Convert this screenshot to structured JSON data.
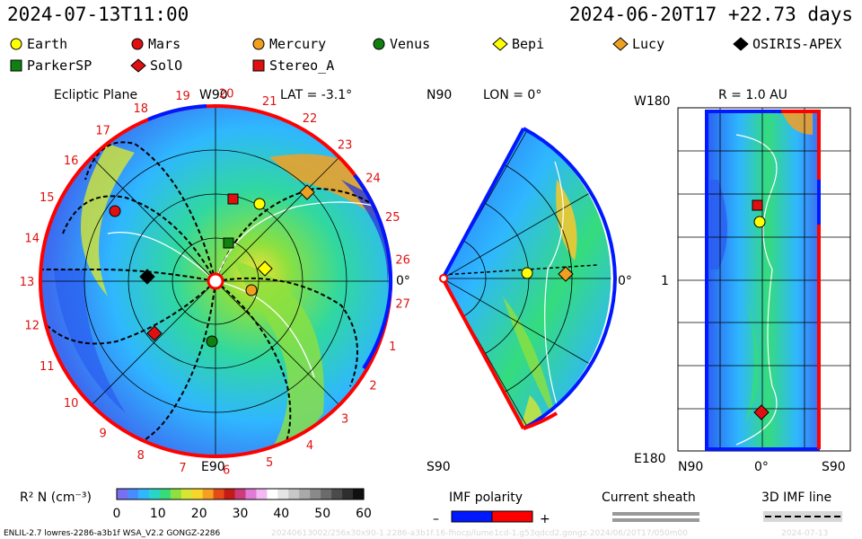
{
  "header": {
    "left": "2024-07-13T11:00",
    "right": "2024-06-20T17 +22.73 days"
  },
  "legend": [
    {
      "label": "Earth",
      "shape": "circle",
      "color": "#ffff00"
    },
    {
      "label": "Mars",
      "shape": "circle",
      "color": "#e01010"
    },
    {
      "label": "Mercury",
      "shape": "circle",
      "color": "#f0a020"
    },
    {
      "label": "Venus",
      "shape": "circle",
      "color": "#108010"
    },
    {
      "label": "Bepi",
      "shape": "diamond",
      "color": "#ffff00"
    },
    {
      "label": "Lucy",
      "shape": "diamond",
      "color": "#f0a020"
    },
    {
      "label": "OSIRIS-APEX",
      "shape": "diamond",
      "color": "#000000"
    },
    {
      "label": "ParkerSP",
      "shape": "square",
      "color": "#108010"
    },
    {
      "label": "SolO",
      "shape": "diamond",
      "color": "#e01010"
    },
    {
      "label": "Stereo_A",
      "shape": "square",
      "color": "#e01010"
    }
  ],
  "panel1": {
    "title": "Ecliptic Plane",
    "top_label": "W90",
    "bottom_label": "E90",
    "right_label": "0°",
    "lat": "LAT = -3.1°",
    "carrington": [
      "19",
      "20",
      "21",
      "22",
      "23",
      "24",
      "25",
      "26",
      "27",
      "1",
      "2",
      "3",
      "4",
      "5",
      "6",
      "7",
      "8",
      "9",
      "10",
      "11",
      "12",
      "13",
      "14",
      "15",
      "16",
      "17",
      "18"
    ]
  },
  "panel2": {
    "top_label": "N90",
    "bottom_label": "S90",
    "right_label": "0°",
    "lon": "LON = 0°"
  },
  "panel3": {
    "title": "R = 1.0 AU",
    "top_left": "W180",
    "mid_left": "1",
    "bottom_left": "E180",
    "x_left": "N90",
    "x_mid": "0°",
    "x_right": "S90"
  },
  "colorbar": {
    "label": "R² N (cm⁻³)",
    "ticks": [
      "0",
      "10",
      "20",
      "30",
      "40",
      "50",
      "60"
    ],
    "colors": [
      "#7a6ff0",
      "#4a8cff",
      "#2fb7ff",
      "#27d6c8",
      "#35dc7c",
      "#8de03f",
      "#d6e632",
      "#f7d62a",
      "#f5a021",
      "#e64b17",
      "#c31b16",
      "#cc3b7a",
      "#e27ad8",
      "#f4b9f2",
      "#ffffff",
      "#e4e4e4",
      "#c7c7c7",
      "#a9a9a9",
      "#8a8a8a",
      "#6b6b6b",
      "#4b4b4b",
      "#2e2e2e",
      "#101010"
    ]
  },
  "imf_polarity": {
    "label": "IMF polarity",
    "minus": "–",
    "plus": "+",
    "neg_color": "#0018ff",
    "pos_color": "#ff0000"
  },
  "current_sheath": {
    "label": "Current sheath"
  },
  "imf_line": {
    "label": "3D IMF line"
  },
  "footer": {
    "left": "ENLIL-2.7 lowres-2286-a3b1f WSA_V2.2 GONGZ-2286",
    "center": "20240613002/256x30x90-1.2286-a3b1f.16-fhocp/lume1cd-1.g53qdcd2.gongz-2024/06/20T17/050m00",
    "right": "2024-07-13"
  }
}
